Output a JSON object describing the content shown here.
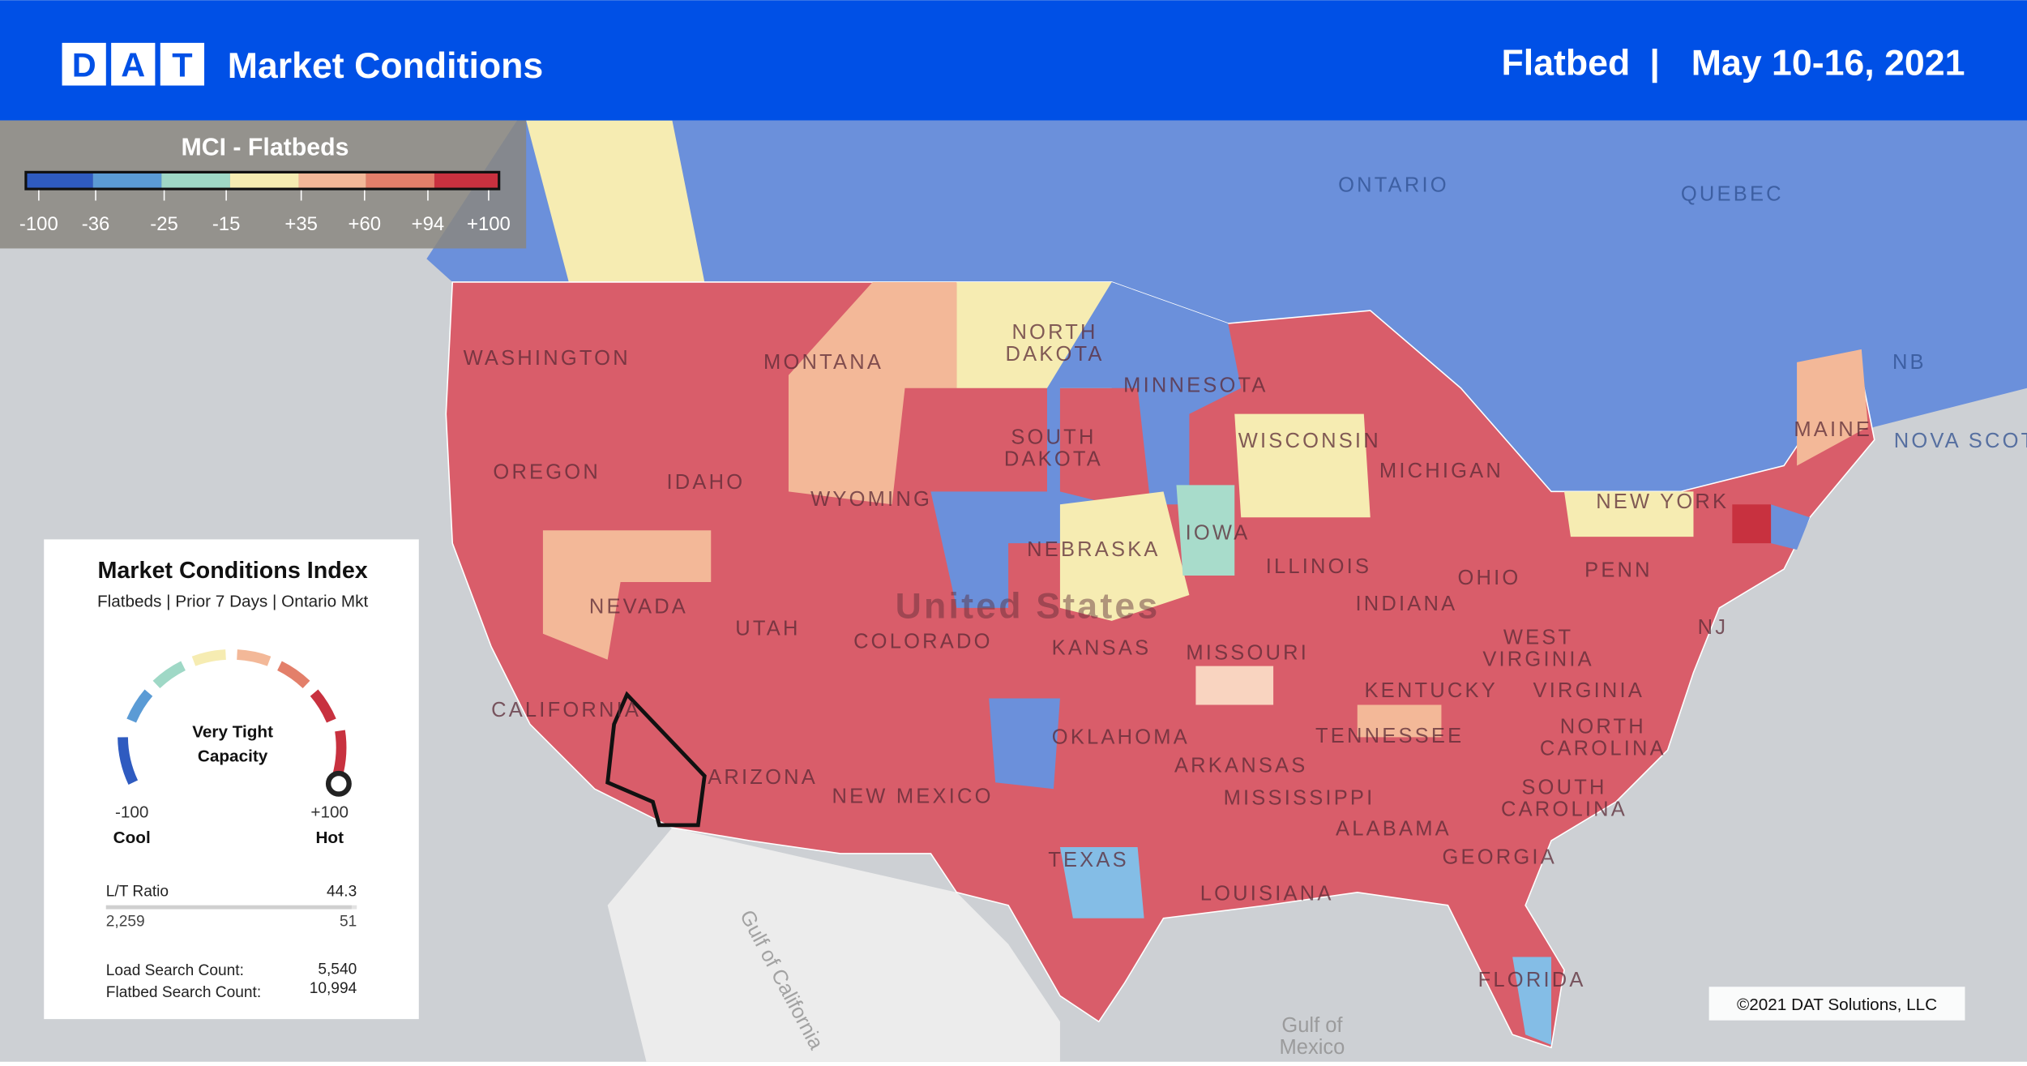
{
  "header": {
    "logo": [
      "D",
      "A",
      "T"
    ],
    "title": "Market Conditions",
    "equipment": "Flatbed",
    "separator": "|",
    "date": "May 10-16, 2021"
  },
  "legend": {
    "title": "MCI - Flatbeds",
    "ticks": [
      "-100",
      "-36",
      "-25",
      "-15",
      "+35",
      "+60",
      "+94",
      "+100"
    ],
    "colors": [
      "#2f5bc0",
      "#5b9bd5",
      "#9fd8c6",
      "#f6ecb2",
      "#f3b898",
      "#e37f6a",
      "#c8313f"
    ]
  },
  "card": {
    "title": "Market Conditions Index",
    "subtitle": "Flatbeds | Prior 7 Days | Ontario Mkt",
    "status": [
      "Very Tight",
      "Capacity"
    ],
    "min": "-100",
    "min_label": "Cool",
    "max": "+100",
    "max_label": "Hot",
    "ratio_label": "L/T Ratio",
    "ratio": "44.3",
    "loads": "2,259",
    "trucks": "51",
    "load_search_label": "Load Search Count:",
    "load_search": "5,540",
    "flatbed_search_label": "Flatbed Search Count:",
    "flatbed_search": "10,994"
  },
  "map": {
    "labels": [
      [
        "ONTARIO"
      ],
      [
        "QUEBEC"
      ],
      [
        "NB"
      ],
      [
        "NOVA SCOTIA"
      ],
      [
        "WASHINGTON"
      ],
      [
        "MONTANA"
      ],
      [
        "NORTH",
        "DAKOTA"
      ],
      [
        "MINNESOTA"
      ],
      [
        "OREGON"
      ],
      [
        "IDAHO"
      ],
      [
        "SOUTH",
        "DAKOTA"
      ],
      [
        "WISCONSIN"
      ],
      [
        "MICHIGAN"
      ],
      [
        "NEW YORK"
      ],
      [
        "MAINE"
      ],
      [
        "WYOMING"
      ],
      [
        "IOWA"
      ],
      [
        "NEBRASKA"
      ],
      [
        "ILLINOIS"
      ],
      [
        "OHIO"
      ],
      [
        "PENN"
      ],
      [
        "NEVADA"
      ],
      [
        "UTAH"
      ],
      [
        "COLORADO"
      ],
      [
        "KANSAS"
      ],
      [
        "MISSOURI"
      ],
      [
        "INDIANA"
      ],
      [
        "WEST",
        "VIRGINIA"
      ],
      [
        "NJ"
      ],
      [
        "CALIFORNIA"
      ],
      [
        "KENTUCKY"
      ],
      [
        "VIRGINIA"
      ],
      [
        "OKLAHOMA"
      ],
      [
        "TENNESSEE"
      ],
      [
        "NORTH",
        "CAROLINA"
      ],
      [
        "ARIZONA"
      ],
      [
        "NEW MEXICO"
      ],
      [
        "ARKANSAS"
      ],
      [
        "MISSISSIPPI"
      ],
      [
        "SOUTH",
        "CAROLINA"
      ],
      [
        "ALABAMA"
      ],
      [
        "GEORGIA"
      ],
      [
        "TEXAS"
      ],
      [
        "LOUISIANA"
      ],
      [
        "FLORIDA"
      ],
      [
        "United States"
      ],
      [
        "Gulf of",
        "Mexico"
      ],
      [
        "Gulf of California"
      ]
    ],
    "copyright": "©2021 DAT Solutions, LLC"
  }
}
